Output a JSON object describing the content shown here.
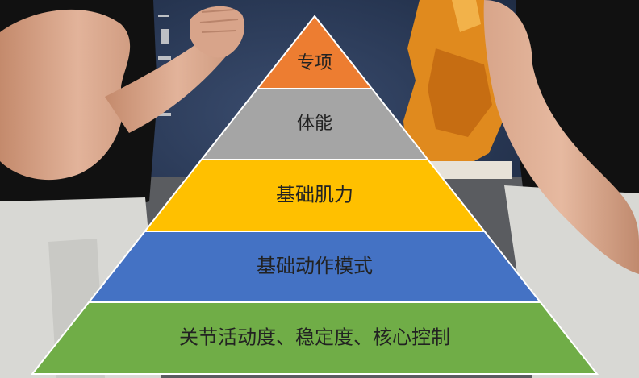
{
  "pyramid": {
    "levels": [
      {
        "label": "专项",
        "color": "#ED7D31"
      },
      {
        "label": "体能",
        "color": "#A5A5A5"
      },
      {
        "label": "基础肌力",
        "color": "#FFC000"
      },
      {
        "label": "基础动作模式",
        "color": "#4472C4"
      },
      {
        "label": "关节活动度、稳定度、核心控制",
        "color": "#70AD47"
      }
    ]
  },
  "background": {
    "wall_color": "#243046",
    "mural_color": "#E08A1E",
    "shirt_color": "#111111",
    "skin_color": "#D9A88C",
    "pants_color": "#D8D8D4"
  }
}
